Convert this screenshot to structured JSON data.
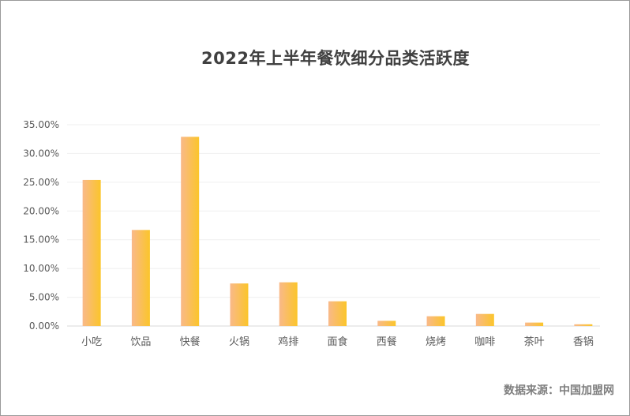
{
  "chart_data": {
    "type": "bar",
    "title": "2022年上半年餐饮细分品类活跃度",
    "categories": [
      "小吃",
      "饮品",
      "快餐",
      "火锅",
      "鸡排",
      "面食",
      "西餐",
      "烧烤",
      "咖啡",
      "茶叶",
      "香锅"
    ],
    "values": [
      25.4,
      16.7,
      32.9,
      7.4,
      7.6,
      4.3,
      0.9,
      1.7,
      2.1,
      0.6,
      0.3
    ],
    "ylim": [
      0,
      35
    ],
    "yticks": [
      0,
      5,
      10,
      15,
      20,
      25,
      30,
      35
    ],
    "ytick_labels": [
      "0.00%",
      "5.00%",
      "10.00%",
      "15.00%",
      "20.00%",
      "25.00%",
      "30.00%",
      "35.00%"
    ],
    "xlabel": "",
    "ylabel": "",
    "grid": true,
    "bar_gradient": [
      "#f9b98a",
      "#fbc52a"
    ],
    "source": "数据来源：中国加盟网"
  }
}
